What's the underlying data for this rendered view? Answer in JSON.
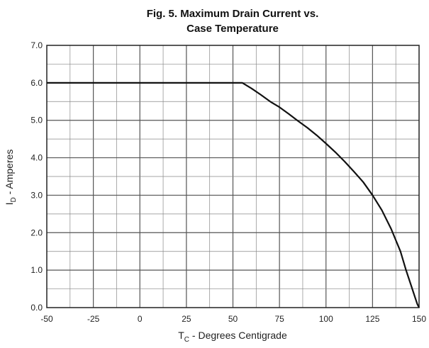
{
  "chart_data": {
    "type": "line",
    "title_line1": "Fig. 5. Maximum Drain Current vs.",
    "title_line2": "Case Temperature",
    "xlabel_main": "T",
    "xlabel_sub": "C",
    "xlabel_rest": " - Degrees Centigrade",
    "ylabel_main": "I",
    "ylabel_sub": "D",
    "ylabel_rest": " - Amperes",
    "xlim": [
      -50,
      150
    ],
    "ylim": [
      0,
      7
    ],
    "x_ticks": [
      "-50",
      "-25",
      "0",
      "25",
      "50",
      "75",
      "100",
      "125",
      "150"
    ],
    "y_ticks": [
      "0.0",
      "1.0",
      "2.0",
      "3.0",
      "4.0",
      "5.0",
      "6.0",
      "7.0"
    ],
    "grid": true,
    "series": [
      {
        "x": [
          -50,
          55,
          60,
          65,
          70,
          75,
          80,
          85,
          90,
          95,
          100,
          105,
          110,
          115,
          120,
          125,
          130,
          135,
          140,
          143,
          145,
          147,
          148,
          149,
          150
        ],
        "y": [
          6.0,
          6.0,
          5.85,
          5.68,
          5.5,
          5.35,
          5.17,
          4.98,
          4.8,
          4.6,
          4.38,
          4.15,
          3.9,
          3.63,
          3.35,
          3.0,
          2.6,
          2.1,
          1.5,
          1.0,
          0.7,
          0.4,
          0.25,
          0.1,
          0.0
        ]
      }
    ]
  }
}
